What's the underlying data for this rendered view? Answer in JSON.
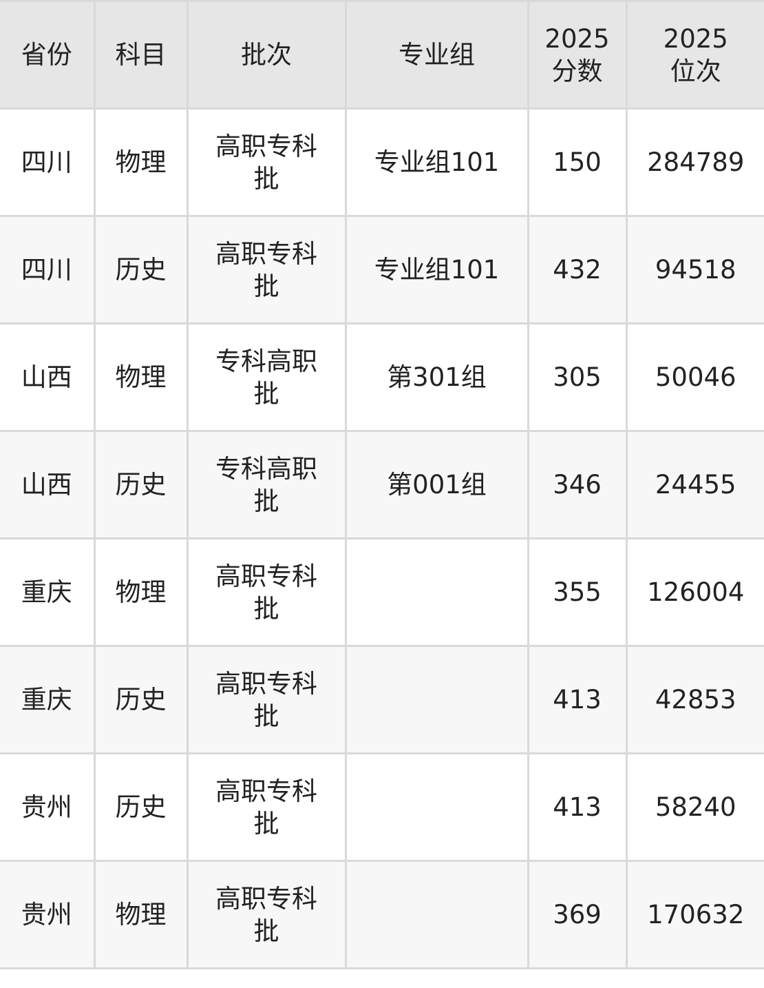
{
  "table": {
    "headers": [
      "省份",
      "科目",
      "批次",
      "专业组",
      "2025\n分数",
      "2025\n位次"
    ],
    "header_lines": [
      [
        "省份"
      ],
      [
        "科目"
      ],
      [
        "批次"
      ],
      [
        "专业组"
      ],
      [
        "2025",
        "分数"
      ],
      [
        "2025",
        "位次"
      ]
    ],
    "rows": [
      [
        "四川",
        "物理",
        "高职专科批",
        "专业组101",
        "150",
        "284789"
      ],
      [
        "四川",
        "历史",
        "高职专科批",
        "专业组101",
        "432",
        "94518"
      ],
      [
        "山西",
        "物理",
        "专科高职批",
        "第301组",
        "305",
        "50046"
      ],
      [
        "山西",
        "历史",
        "专科高职批",
        "第001组",
        "346",
        "24455"
      ],
      [
        "重庆",
        "物理",
        "高职专科批",
        "",
        "355",
        "126004"
      ],
      [
        "重庆",
        "历史",
        "高职专科批",
        "",
        "413",
        "42853"
      ],
      [
        "贵州",
        "历史",
        "高职专科批",
        "",
        "413",
        "58240"
      ],
      [
        "贵州",
        "物理",
        "高职专科批",
        "",
        "369",
        "170632"
      ]
    ],
    "colors": {
      "header_bg": "#e6e6e6",
      "row_alt_bg": "#f7f7f7",
      "border": "#d9d9d9",
      "text": "#222222"
    }
  }
}
